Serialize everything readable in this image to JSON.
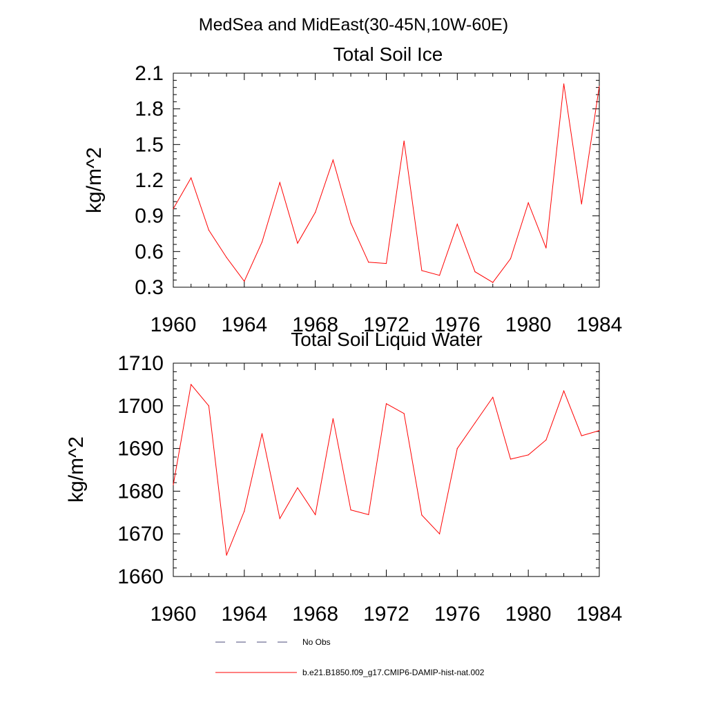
{
  "figure": {
    "main_title": "MedSea and MidEast(30-45N,10W-60E)"
  },
  "chart_data": [
    {
      "type": "line",
      "title": "Total Soil Ice",
      "ylabel": "kg/m^2",
      "xlabel": "",
      "xlim": [
        1960,
        1984
      ],
      "ylim": [
        0.3,
        2.1
      ],
      "xticks": [
        1960,
        1964,
        1968,
        1972,
        1976,
        1980,
        1984
      ],
      "yticks": [
        0.3,
        0.6,
        0.9,
        1.2,
        1.5,
        1.8,
        2.1
      ],
      "ytick_labels": [
        "0.3",
        "0.6",
        "0.9",
        "1.2",
        "1.5",
        "1.8",
        "2.1"
      ],
      "grid": false,
      "series": [
        {
          "name": "b.e21.B1850.f09_g17.CMIP6-DAMIP-hist-nat.002",
          "color": "#ff0000",
          "x": [
            1960,
            1961,
            1962,
            1963,
            1964,
            1965,
            1966,
            1967,
            1968,
            1969,
            1970,
            1971,
            1972,
            1973,
            1974,
            1975,
            1976,
            1977,
            1978,
            1979,
            1980,
            1981,
            1982,
            1983,
            1984
          ],
          "y": [
            0.96,
            1.22,
            0.78,
            0.55,
            0.35,
            0.68,
            1.18,
            0.67,
            0.93,
            1.37,
            0.84,
            0.51,
            0.5,
            1.53,
            0.44,
            0.4,
            0.83,
            0.43,
            0.34,
            0.54,
            1.01,
            0.63,
            2.01,
            1.0,
            1.99
          ]
        }
      ]
    },
    {
      "type": "line",
      "title": "Total Soil Liquid Water",
      "ylabel": "kg/m^2",
      "xlabel": "",
      "xlim": [
        1960,
        1984
      ],
      "ylim": [
        1660,
        1710
      ],
      "xticks": [
        1960,
        1964,
        1968,
        1972,
        1976,
        1980,
        1984
      ],
      "yticks": [
        1660,
        1670,
        1680,
        1690,
        1700,
        1710
      ],
      "ytick_labels": [
        "1660",
        "1670",
        "1680",
        "1690",
        "1700",
        "1710"
      ],
      "grid": false,
      "series": [
        {
          "name": "b.e21.B1850.f09_g17.CMIP6-DAMIP-hist-nat.002",
          "color": "#ff0000",
          "x": [
            1960,
            1961,
            1962,
            1963,
            1964,
            1965,
            1966,
            1967,
            1968,
            1969,
            1970,
            1971,
            1972,
            1973,
            1974,
            1975,
            1976,
            1977,
            1978,
            1979,
            1980,
            1981,
            1982,
            1983,
            1984
          ],
          "y": [
            1681.5,
            1705,
            1700,
            1665,
            1675.3,
            1693.5,
            1673.6,
            1680.8,
            1674.5,
            1697,
            1675.6,
            1674.5,
            1700.5,
            1698.2,
            1674.4,
            1670,
            1690,
            1696,
            1702,
            1687.5,
            1688.5,
            1692,
            1703.5,
            1693,
            1694.2
          ]
        }
      ]
    }
  ],
  "legend": {
    "placement": "bottom",
    "entries": [
      {
        "label": "No Obs",
        "color": "#4a4a7a",
        "style": "dashed"
      },
      {
        "label": "b.e21.B1850.f09_g17.CMIP6-DAMIP-hist-nat.002",
        "color": "#ff0000",
        "style": "solid"
      }
    ]
  }
}
